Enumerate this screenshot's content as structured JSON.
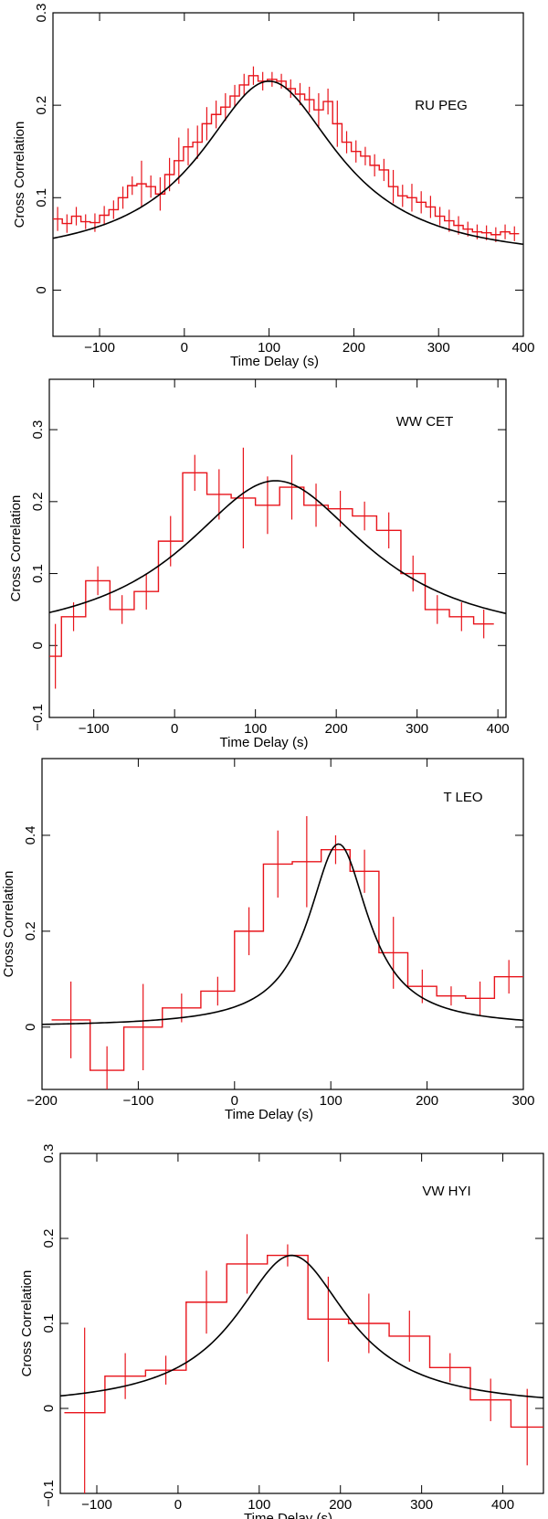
{
  "colors": {
    "data": "#e8141b",
    "model": "#000000",
    "frame": "#000000"
  },
  "chart_data": [
    {
      "type": "line",
      "title": "RU PEG",
      "xlabel": "Time Delay (s)",
      "ylabel": "Cross Correlation",
      "xlim": [
        -155,
        400
      ],
      "ylim": [
        -0.05,
        0.3
      ],
      "xticks": [
        -100,
        0,
        100,
        200,
        300,
        400
      ],
      "xtick_labels": [
        "−100",
        "0",
        "100",
        "200",
        "300",
        "400"
      ],
      "yticks": [
        0,
        0.1,
        0.2,
        0.3
      ],
      "ytick_labels": [
        "0",
        "0.1",
        "0.2",
        "0.3"
      ],
      "series": [
        {
          "name": "data (histogram with error bars)",
          "bin_edges": [
            -155,
            -144,
            -133,
            -122,
            -111,
            -100,
            -89,
            -78,
            -67,
            -56,
            -45,
            -34,
            -23,
            -12,
            -1,
            10,
            21,
            32,
            43,
            54,
            65,
            76,
            87,
            98,
            109,
            120,
            131,
            142,
            153,
            164,
            175,
            186,
            197,
            208,
            219,
            230,
            241,
            252,
            263,
            274,
            285,
            296,
            307,
            318,
            329,
            340,
            351,
            362,
            373,
            384,
            395
          ],
          "values": [
            0.077,
            0.072,
            0.08,
            0.074,
            0.073,
            0.081,
            0.087,
            0.1,
            0.113,
            0.115,
            0.112,
            0.104,
            0.125,
            0.14,
            0.155,
            0.16,
            0.18,
            0.19,
            0.198,
            0.21,
            0.222,
            0.232,
            0.226,
            0.228,
            0.226,
            0.218,
            0.212,
            0.206,
            0.195,
            0.204,
            0.18,
            0.16,
            0.15,
            0.145,
            0.135,
            0.13,
            0.112,
            0.102,
            0.1,
            0.095,
            0.09,
            0.08,
            0.075,
            0.07,
            0.066,
            0.063,
            0.062,
            0.06,
            0.063,
            0.061
          ],
          "errors": [
            0.013,
            0.01,
            0.01,
            0.008,
            0.01,
            0.01,
            0.01,
            0.012,
            0.01,
            0.025,
            0.012,
            0.018,
            0.018,
            0.025,
            0.02,
            0.018,
            0.018,
            0.015,
            0.015,
            0.012,
            0.012,
            0.01,
            0.01,
            0.008,
            0.008,
            0.01,
            0.012,
            0.014,
            0.018,
            0.014,
            0.025,
            0.012,
            0.012,
            0.01,
            0.012,
            0.012,
            0.018,
            0.012,
            0.015,
            0.012,
            0.012,
            0.01,
            0.012,
            0.01,
            0.008,
            0.008,
            0.008,
            0.008,
            0.008,
            0.008
          ]
        },
        {
          "name": "model",
          "peak": 0.226,
          "center": 100,
          "width": 100,
          "baseline": 0.03
        }
      ]
    },
    {
      "type": "line",
      "title": "WW CET",
      "xlabel": "Time Delay (s)",
      "ylabel": "Cross Correlation",
      "xlim": [
        -155,
        410
      ],
      "ylim": [
        -0.1,
        0.37
      ],
      "xticks": [
        -100,
        0,
        100,
        200,
        300,
        400
      ],
      "xtick_labels": [
        "−100",
        "0",
        "100",
        "200",
        "300",
        "400"
      ],
      "yticks": [
        -0.1,
        0,
        0.1,
        0.2,
        0.3
      ],
      "ytick_labels": [
        "−0.1",
        "0",
        "0.1",
        "0.2",
        "0.3"
      ],
      "series": [
        {
          "name": "data (histogram with error bars)",
          "bin_edges": [
            -155,
            -140,
            -110,
            -80,
            -50,
            -20,
            10,
            40,
            70,
            100,
            130,
            160,
            190,
            220,
            250,
            280,
            310,
            340,
            370,
            395
          ],
          "values": [
            -0.015,
            0.04,
            0.09,
            0.05,
            0.075,
            0.145,
            0.24,
            0.21,
            0.205,
            0.195,
            0.22,
            0.195,
            0.19,
            0.18,
            0.16,
            0.1,
            0.05,
            0.04,
            0.03
          ],
          "errors": [
            0.045,
            0.02,
            0.02,
            0.02,
            0.025,
            0.035,
            0.025,
            0.035,
            0.07,
            0.04,
            0.045,
            0.03,
            0.025,
            0.02,
            0.025,
            0.025,
            0.02,
            0.02,
            0.02
          ]
        },
        {
          "name": "model",
          "peak": 0.229,
          "center": 125,
          "width": 140,
          "baseline": 0.0
        }
      ]
    },
    {
      "type": "line",
      "title": "T LEO",
      "xlabel": "Time Delay (s)",
      "ylabel": "Cross Correlation",
      "xlim": [
        -200,
        300
      ],
      "ylim": [
        -0.13,
        0.56
      ],
      "xticks": [
        -200,
        -100,
        0,
        100,
        200,
        300
      ],
      "xtick_labels": [
        "−200",
        "−100",
        "0",
        "100",
        "200",
        "300"
      ],
      "yticks": [
        0,
        0.2,
        0.4
      ],
      "ytick_labels": [
        "0",
        "0.2",
        "0.4"
      ],
      "series": [
        {
          "name": "data (histogram with error bars)",
          "bin_edges": [
            -190,
            -150,
            -115,
            -75,
            -35,
            0,
            30,
            60,
            90,
            120,
            150,
            180,
            210,
            240,
            270,
            300
          ],
          "values": [
            0.015,
            -0.09,
            0.0,
            0.04,
            0.075,
            0.2,
            0.34,
            0.345,
            0.37,
            0.325,
            0.155,
            0.085,
            0.065,
            0.06,
            0.105
          ],
          "errors": [
            0.08,
            0.05,
            0.09,
            0.03,
            0.03,
            0.05,
            0.07,
            0.095,
            0.03,
            0.045,
            0.075,
            0.035,
            0.02,
            0.035,
            0.035
          ]
        },
        {
          "name": "model",
          "peak": 0.382,
          "center": 108,
          "width": 38,
          "baseline": 0.0
        }
      ]
    },
    {
      "type": "line",
      "title": "VW HYI",
      "xlabel": "Time Delay (s)",
      "ylabel": "Cross Correlation",
      "xlim": [
        -145,
        450
      ],
      "ylim": [
        -0.1,
        0.3
      ],
      "xticks": [
        -100,
        0,
        100,
        200,
        300,
        400
      ],
      "xtick_labels": [
        "−100",
        "0",
        "100",
        "200",
        "300",
        "400"
      ],
      "yticks": [
        -0.1,
        0,
        0.1,
        0.2,
        0.3
      ],
      "ytick_labels": [
        "−0.1",
        "0",
        "0.1",
        "0.2",
        "0.3"
      ],
      "series": [
        {
          "name": "data (histogram with error bars)",
          "bin_edges": [
            -140,
            -90,
            -40,
            10,
            60,
            110,
            160,
            210,
            260,
            310,
            360,
            410,
            450
          ],
          "values": [
            -0.005,
            0.038,
            0.045,
            0.125,
            0.17,
            0.18,
            0.105,
            0.1,
            0.085,
            0.048,
            0.01,
            -0.022
          ],
          "errors": [
            0.1,
            0.027,
            0.017,
            0.037,
            0.035,
            0.013,
            0.05,
            0.035,
            0.03,
            0.017,
            0.025,
            0.045
          ]
        },
        {
          "name": "model",
          "peak": 0.18,
          "center": 140,
          "width": 85,
          "baseline": 0.0
        }
      ]
    }
  ]
}
